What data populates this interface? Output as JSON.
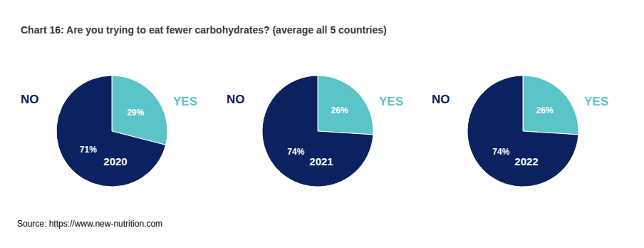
{
  "title": "Chart 16: Are you trying to eat fewer carbohydrates? (average all 5 countries)",
  "source": "Source: https://www.new-nutrition.com",
  "chart_data": [
    {
      "type": "pie",
      "title": "2020",
      "categories": [
        "YES",
        "NO"
      ],
      "values": [
        29,
        71
      ],
      "value_labels": [
        "29%",
        "71%"
      ],
      "colors": [
        "#5bc4c9",
        "#0b2160"
      ],
      "data_labels": true
    },
    {
      "type": "pie",
      "title": "2021",
      "categories": [
        "YES",
        "NO"
      ],
      "values": [
        26,
        74
      ],
      "value_labels": [
        "26%",
        "74%"
      ],
      "colors": [
        "#5bc4c9",
        "#0b2160"
      ],
      "data_labels": true
    },
    {
      "type": "pie",
      "title": "2022",
      "categories": [
        "YES",
        "NO"
      ],
      "values": [
        26,
        74
      ],
      "value_labels": [
        "26%",
        "74%"
      ],
      "colors": [
        "#5bc4c9",
        "#0b2160"
      ],
      "data_labels": true
    }
  ]
}
